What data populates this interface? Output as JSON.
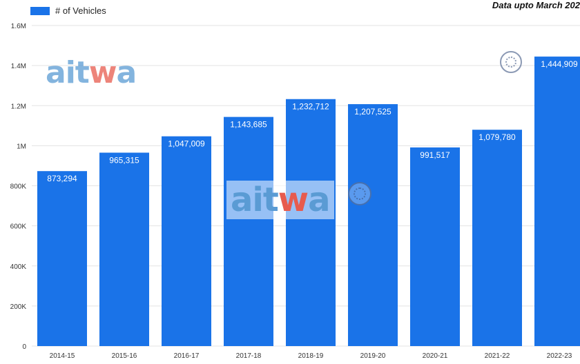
{
  "legend": {
    "label": "# of Vehicles",
    "color": "#1a73e8"
  },
  "note": "Data upto March 202",
  "watermarks": [
    {
      "text": "aitwa",
      "icon": "aitwa-logo"
    },
    {
      "text": "aitwa",
      "icon": "aitwa-logo"
    }
  ],
  "colors": {
    "bar": "#1a73e8",
    "grid": "#e3e3e3",
    "axis_text": "#333333"
  },
  "chart_data": {
    "type": "bar",
    "title": "",
    "xlabel": "",
    "ylabel": "",
    "categories": [
      "2014-15",
      "2015-16",
      "2016-17",
      "2017-18",
      "2018-19",
      "2019-20",
      "2020-21",
      "2021-22",
      "2022-23"
    ],
    "series": [
      {
        "name": "# of Vehicles",
        "values": [
          873294,
          965315,
          1047009,
          1143685,
          1232712,
          1207525,
          991517,
          1079780,
          1444909
        ],
        "labels": [
          "873,294",
          "965,315",
          "1,047,009",
          "1,143,685",
          "1,232,712",
          "1,207,525",
          "991,517",
          "1,079,780",
          "1,444,909"
        ]
      }
    ],
    "ylim": [
      0,
      1600000
    ],
    "yticks": [
      0,
      200000,
      400000,
      600000,
      800000,
      1000000,
      1200000,
      1400000,
      1600000
    ],
    "ytick_labels": [
      "0",
      "200K",
      "400K",
      "600K",
      "800K",
      "1M",
      "1.2M",
      "1.4M",
      "1.6M"
    ],
    "grid": true,
    "legend_position": "top-left"
  }
}
